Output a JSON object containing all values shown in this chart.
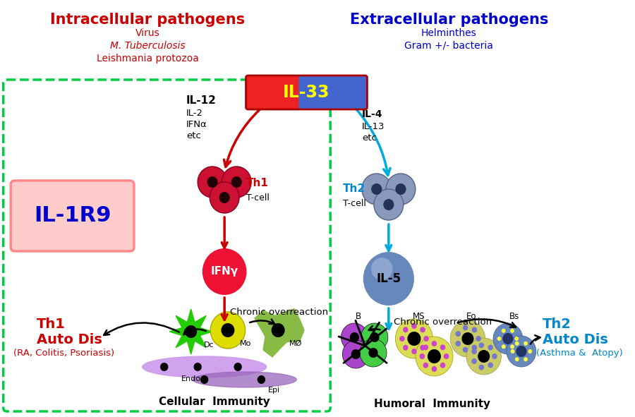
{
  "bg_color": "#ffffff",
  "left_title": "Intracellular pathogens",
  "left_subtitle": [
    "Virus",
    "M. Tuberculosis",
    "Leishmania protozoa"
  ],
  "right_title": "Extracellular pathogens",
  "right_subtitle": [
    "Helminthes",
    "Gram +/- bacteria"
  ],
  "il33_label": "IL-33",
  "il33_text_color": "#ffff00",
  "left_cytokines_bold": "IL-12",
  "left_cytokines_rest": [
    "IL-2",
    "IFNα",
    "etc"
  ],
  "right_cytokines_bold": "IL-4",
  "right_cytokines_rest": [
    "IL-13",
    "etc"
  ],
  "th1_label": "Th1",
  "th1_sublabel": "T-cell",
  "th2_label": "Th2",
  "th2_sublabel": "T-cell",
  "ifng_label": "IFNγ",
  "il5_label": "IL-5",
  "chronic_text": "Chronic overreaction",
  "cellular_immunity": "Cellular  Immunity",
  "humoral_immunity": "Humoral  Immunity",
  "th1_auto_1": "Th1",
  "th1_auto_2": "Auto Dis",
  "th1_auto_3": "(RA, Colitis, Psoriasis)",
  "th2_auto_1": "Th2",
  "th2_auto_2": "Auto Dis",
  "th2_auto_3": "(Asthma &  Atopy)",
  "il1r9_label": "IL-1R9",
  "dashed_box_color": "#00cc44",
  "left_arrow_color": "#cc0000",
  "right_arrow_color": "#00aadd",
  "left_title_color": "#cc0000",
  "right_title_color": "#0000cc",
  "th1_color": "#cc0000",
  "th2_color": "#0088cc",
  "il1r9_text_color": "#0000cc",
  "il1r9_box_color": "#ffcccc",
  "il1r9_box_edge": "#ff8888"
}
